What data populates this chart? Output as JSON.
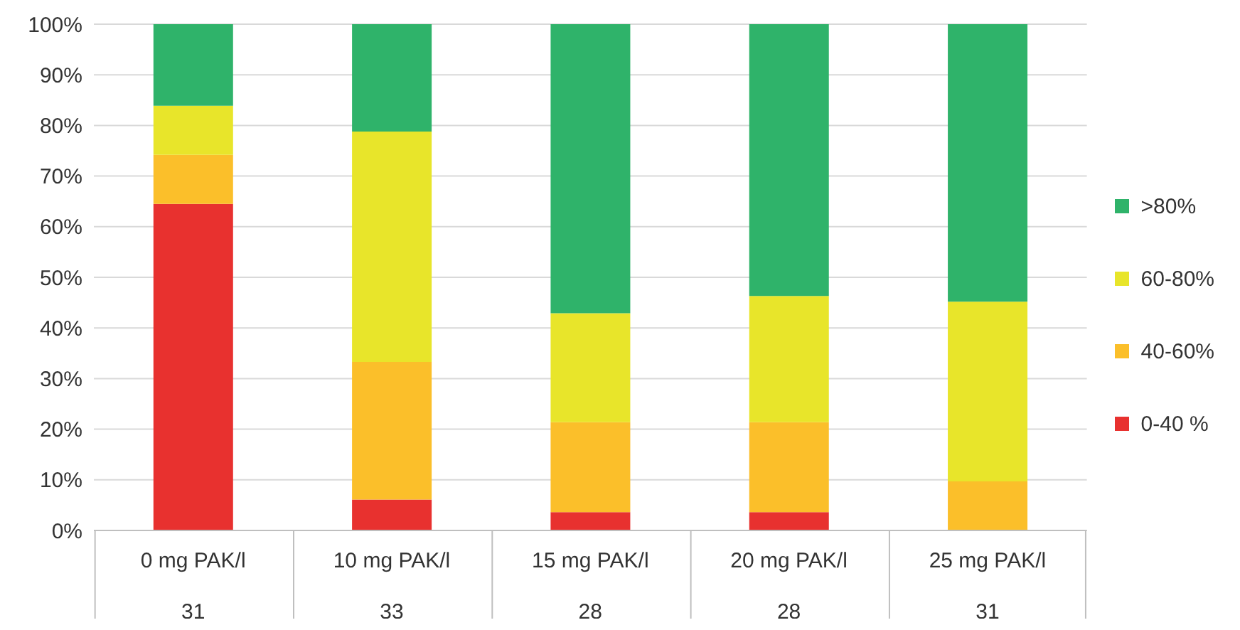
{
  "chart_data": {
    "type": "bar",
    "stacked": true,
    "categories": [
      "0 mg PAK/l\n31",
      "10 mg PAK/l\n33",
      "15 mg PAK/l\n28",
      "20 mg PAK/l\n28",
      "25 mg PAK/l\n31"
    ],
    "series": [
      {
        "name": "0-40 %",
        "color": "#e8312f",
        "values": [
          64.5,
          6.1,
          3.6,
          3.6,
          0
        ]
      },
      {
        "name": "40-60%",
        "color": "#fbbf2a",
        "values": [
          9.7,
          27.2,
          17.8,
          17.8,
          9.7
        ]
      },
      {
        "name": "60-80%",
        "color": "#e8e52a",
        "values": [
          9.7,
          45.5,
          21.5,
          24.9,
          35.5
        ]
      },
      {
        "name": ">80%",
        "color": "#2fb36a",
        "values": [
          16.1,
          21.2,
          57.1,
          53.7,
          54.8
        ]
      }
    ],
    "ylim": [
      0,
      100
    ],
    "yticks": [
      {
        "value": 0,
        "label": "0%"
      },
      {
        "value": 10,
        "label": "10%"
      },
      {
        "value": 20,
        "label": "20%"
      },
      {
        "value": 30,
        "label": "30%"
      },
      {
        "value": 40,
        "label": "40%"
      },
      {
        "value": 50,
        "label": "50%"
      },
      {
        "value": 60,
        "label": "60%"
      },
      {
        "value": 70,
        "label": "70%"
      },
      {
        "value": 80,
        "label": "80%"
      },
      {
        "value": 90,
        "label": "90%"
      },
      {
        "value": 100,
        "label": "100%"
      }
    ],
    "grid": "y",
    "legend": "right"
  }
}
